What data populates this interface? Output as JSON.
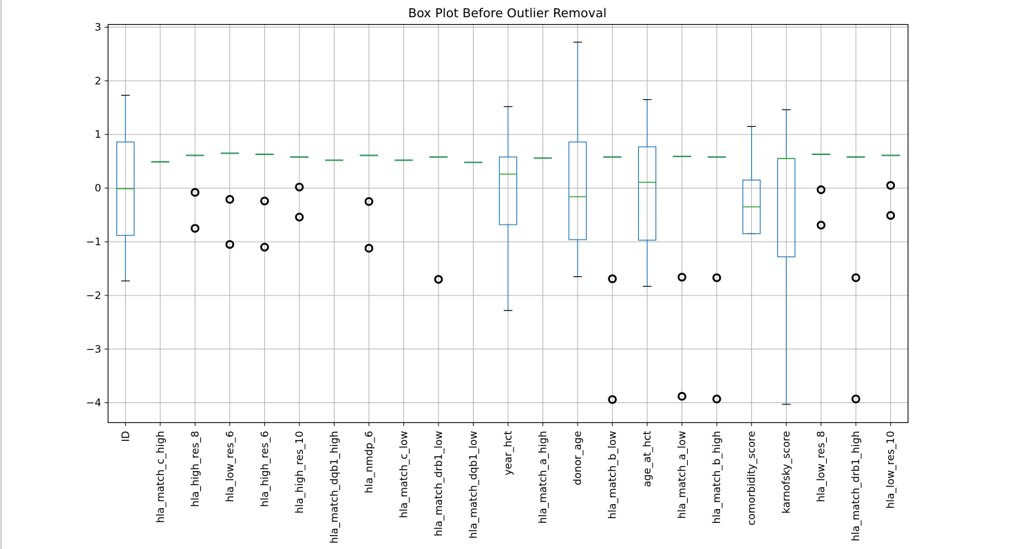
{
  "chart_data": {
    "type": "box",
    "title": "Box Plot Before Outlier Removal",
    "xlabel": "",
    "ylabel": "",
    "ylim": [
      -4.37,
      3.05
    ],
    "yticks": [
      3,
      2,
      1,
      0,
      -1,
      -2,
      -3,
      -4
    ],
    "ytick_labels": [
      "3",
      "2",
      "1",
      "0",
      "−1",
      "−2",
      "−3",
      "−4"
    ],
    "grid": true,
    "colors": {
      "box": "#1f77b4",
      "median": "#2ca02c",
      "outlier": "#000000",
      "grid": "#b0b0b0"
    },
    "categories": [
      "ID",
      "hla_match_c_high",
      "hla_high_res_8",
      "hla_low_res_6",
      "hla_high_res_6",
      "hla_high_res_10",
      "hla_match_dqb1_high",
      "hla_nmdp_6",
      "hla_match_c_low",
      "hla_match_drb1_low",
      "hla_match_dqb1_low",
      "year_hct",
      "hla_match_a_high",
      "donor_age",
      "hla_match_b_low",
      "age_at_hct",
      "hla_match_a_low",
      "hla_match_b_high",
      "comorbidity_score",
      "karnofsky_score",
      "hla_low_res_8",
      "hla_match_drb1_high",
      "hla_low_res_10"
    ],
    "boxes": [
      {
        "whislo": -1.73,
        "q1": -0.88,
        "med": -0.01,
        "q3": 0.86,
        "whishi": 1.73,
        "fliers": []
      },
      {
        "whislo": 0.49,
        "q1": 0.49,
        "med": 0.49,
        "q3": 0.49,
        "whishi": 0.49,
        "fliers": []
      },
      {
        "whislo": 0.61,
        "q1": 0.61,
        "med": 0.61,
        "q3": 0.61,
        "whishi": 0.61,
        "fliers": [
          -0.08,
          -0.75
        ]
      },
      {
        "whislo": 0.65,
        "q1": 0.65,
        "med": 0.65,
        "q3": 0.65,
        "whishi": 0.65,
        "fliers": [
          -0.21,
          -1.05
        ]
      },
      {
        "whislo": 0.63,
        "q1": 0.63,
        "med": 0.63,
        "q3": 0.63,
        "whishi": 0.63,
        "fliers": [
          -0.24,
          -1.1
        ]
      },
      {
        "whislo": 0.58,
        "q1": 0.58,
        "med": 0.58,
        "q3": 0.58,
        "whishi": 0.58,
        "fliers": [
          0.02,
          -0.54
        ]
      },
      {
        "whislo": 0.52,
        "q1": 0.52,
        "med": 0.52,
        "q3": 0.52,
        "whishi": 0.52,
        "fliers": []
      },
      {
        "whislo": 0.61,
        "q1": 0.61,
        "med": 0.61,
        "q3": 0.61,
        "whishi": 0.61,
        "fliers": [
          -0.25,
          -1.12
        ]
      },
      {
        "whislo": 0.52,
        "q1": 0.52,
        "med": 0.52,
        "q3": 0.52,
        "whishi": 0.52,
        "fliers": []
      },
      {
        "whislo": 0.58,
        "q1": 0.58,
        "med": 0.58,
        "q3": 0.58,
        "whishi": 0.58,
        "fliers": [
          -1.7
        ]
      },
      {
        "whislo": 0.48,
        "q1": 0.48,
        "med": 0.48,
        "q3": 0.48,
        "whishi": 0.48,
        "fliers": []
      },
      {
        "whislo": -2.28,
        "q1": -0.68,
        "med": 0.26,
        "q3": 0.58,
        "whishi": 1.52,
        "fliers": []
      },
      {
        "whislo": 0.56,
        "q1": 0.56,
        "med": 0.56,
        "q3": 0.56,
        "whishi": 0.56,
        "fliers": []
      },
      {
        "whislo": -1.65,
        "q1": -0.96,
        "med": -0.16,
        "q3": 0.86,
        "whishi": 2.72,
        "fliers": []
      },
      {
        "whislo": 0.58,
        "q1": 0.58,
        "med": 0.58,
        "q3": 0.58,
        "whishi": 0.58,
        "fliers": [
          -1.69,
          -3.94
        ]
      },
      {
        "whislo": -1.83,
        "q1": -0.97,
        "med": 0.11,
        "q3": 0.77,
        "whishi": 1.65,
        "fliers": []
      },
      {
        "whislo": 0.59,
        "q1": 0.59,
        "med": 0.59,
        "q3": 0.59,
        "whishi": 0.59,
        "fliers": [
          -1.66,
          -3.88
        ]
      },
      {
        "whislo": 0.58,
        "q1": 0.58,
        "med": 0.58,
        "q3": 0.58,
        "whishi": 0.58,
        "fliers": [
          -1.67,
          -3.93
        ]
      },
      {
        "whislo": -0.85,
        "q1": -0.85,
        "med": -0.35,
        "q3": 0.15,
        "whishi": 1.15,
        "fliers": []
      },
      {
        "whislo": -4.03,
        "q1": -1.28,
        "med": 0.55,
        "q3": 0.55,
        "whishi": 1.46,
        "fliers": []
      },
      {
        "whislo": 0.63,
        "q1": 0.63,
        "med": 0.63,
        "q3": 0.63,
        "whishi": 0.63,
        "fliers": [
          -0.03,
          -0.69
        ]
      },
      {
        "whislo": 0.58,
        "q1": 0.58,
        "med": 0.58,
        "q3": 0.58,
        "whishi": 0.58,
        "fliers": [
          -1.67,
          -3.93
        ]
      },
      {
        "whislo": 0.61,
        "q1": 0.61,
        "med": 0.61,
        "q3": 0.61,
        "whishi": 0.61,
        "fliers": [
          0.05,
          -0.51
        ]
      }
    ]
  }
}
